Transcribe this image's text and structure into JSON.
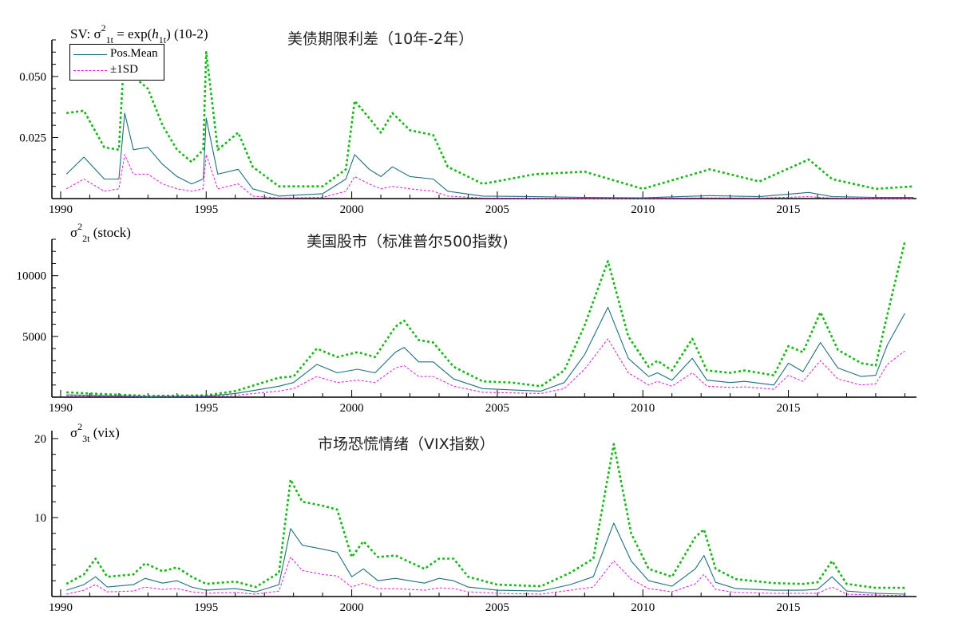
{
  "legend": {
    "mean": "Pos.Mean",
    "sd": "±1SD"
  },
  "colors": {
    "mean": "#1f6f7d",
    "upper": "#16b816",
    "lower": "#d81fd8",
    "axis": "#000000"
  },
  "chart_data": [
    {
      "type": "line",
      "title": "美债期限利差（10年-2年）",
      "ylabel_parts": [
        {
          "t": "SV: σ",
          "s": ""
        },
        {
          "t": "2",
          "s": "sup"
        },
        {
          "t": "1t",
          "s": "sub"
        },
        {
          "t": " = exp(",
          "s": ""
        },
        {
          "t": "h",
          "s": "i"
        },
        {
          "t": "1t",
          "s": "sub"
        },
        {
          "t": ") (10-2)",
          "s": ""
        }
      ],
      "xlim": [
        1989.7,
        2019.4
      ],
      "ylim": [
        0,
        0.065
      ],
      "xticks": [
        "1990",
        "1995",
        "2000",
        "2005",
        "2010",
        "2015"
      ],
      "yticks": [
        0.025,
        0.05
      ],
      "ytick_labels": [
        "0.025",
        "0.050"
      ],
      "yminor": 0.005,
      "x": [
        1990.2,
        1990.8,
        1991.5,
        1992.0,
        1992.2,
        1992.5,
        1993.0,
        1993.5,
        1994.0,
        1994.5,
        1994.9,
        1995.0,
        1995.4,
        1996.1,
        1996.6,
        1997.5,
        1999.0,
        1999.8,
        2000.1,
        2000.6,
        2001.0,
        2001.4,
        2002.0,
        2002.8,
        2003.3,
        2004.5,
        2006.3,
        2008.0,
        2010.0,
        2012.3,
        2014.0,
        2015.7,
        2016.5,
        2018.0,
        2019.3
      ],
      "series": [
        {
          "name": "Pos.Mean",
          "values": [
            0.01,
            0.017,
            0.008,
            0.008,
            0.035,
            0.02,
            0.021,
            0.014,
            0.009,
            0.006,
            0.008,
            0.033,
            0.01,
            0.012,
            0.004,
            0.001,
            0.002,
            0.008,
            0.018,
            0.012,
            0.009,
            0.013,
            0.009,
            0.008,
            0.003,
            0.001,
            0.0008,
            0.0005,
            0.0003,
            0.0012,
            0.0008,
            0.0025,
            0.0008,
            0.0005,
            0.0005
          ]
        },
        {
          "name": "+1SD",
          "values": [
            0.035,
            0.036,
            0.021,
            0.02,
            0.063,
            0.05,
            0.045,
            0.03,
            0.02,
            0.015,
            0.02,
            0.06,
            0.02,
            0.027,
            0.013,
            0.005,
            0.005,
            0.012,
            0.04,
            0.033,
            0.027,
            0.035,
            0.028,
            0.026,
            0.013,
            0.006,
            0.01,
            0.011,
            0.004,
            0.012,
            0.007,
            0.016,
            0.008,
            0.004,
            0.005
          ]
        },
        {
          "name": "-1SD",
          "values": [
            0.004,
            0.008,
            0.003,
            0.004,
            0.018,
            0.01,
            0.01,
            0.006,
            0.004,
            0.003,
            0.004,
            0.018,
            0.004,
            0.006,
            0.001,
            0.0002,
            0.0005,
            0.003,
            0.009,
            0.006,
            0.004,
            0.005,
            0.004,
            0.003,
            0.001,
            0.0002,
            0.0001,
            0.0001,
            0.0001,
            0.0003,
            0.0002,
            0.0008,
            0.0002,
            0.0001,
            0.0001
          ]
        }
      ]
    },
    {
      "type": "line",
      "title": "美国股市（标准普尔500指数)",
      "ylabel_parts": [
        {
          "t": "σ",
          "s": ""
        },
        {
          "t": "2",
          "s": "sup"
        },
        {
          "t": "2t",
          "s": "sub"
        },
        {
          "t": " (stock)",
          "s": ""
        }
      ],
      "xlim": [
        1989.7,
        2019.4
      ],
      "ylim": [
        0,
        13000
      ],
      "xticks": [
        "1990",
        "1995",
        "2000",
        "2005",
        "2010",
        "2015"
      ],
      "yticks": [
        5000,
        10000
      ],
      "ytick_labels": [
        "5000",
        "10000"
      ],
      "yminor": 1000,
      "x": [
        1990.2,
        1991,
        1993,
        1995,
        1996,
        1997.5,
        1998,
        1998.8,
        1999.5,
        2000.2,
        2000.8,
        2001.5,
        2001.8,
        2002.3,
        2002.8,
        2003.5,
        2004.5,
        2005.5,
        2006.5,
        2007.3,
        2008,
        2008.8,
        2009.5,
        2010.2,
        2010.5,
        2011,
        2011.7,
        2012.2,
        2013,
        2013.5,
        2014.5,
        2015.0,
        2015.5,
        2016.1,
        2016.7,
        2017.5,
        2018.0,
        2018.4,
        2019.0
      ],
      "series": [
        {
          "name": "Pos.Mean",
          "values": [
            200,
            150,
            50,
            80,
            300,
            900,
            1200,
            2700,
            2000,
            2300,
            2000,
            3700,
            4100,
            2900,
            2900,
            1500,
            700,
            600,
            500,
            1200,
            3500,
            7400,
            3200,
            1700,
            2000,
            1400,
            3200,
            1400,
            1200,
            1300,
            1000,
            2800,
            2100,
            4500,
            2400,
            1700,
            1800,
            4300,
            6900
          ]
        },
        {
          "name": "+1SD",
          "values": [
            400,
            300,
            100,
            150,
            500,
            1600,
            1700,
            4000,
            3300,
            3700,
            3300,
            5800,
            6300,
            4700,
            4500,
            2500,
            1300,
            1200,
            900,
            2200,
            5900,
            11200,
            5000,
            2500,
            3000,
            2200,
            4800,
            2200,
            2000,
            2200,
            1800,
            4200,
            3700,
            7000,
            3900,
            2800,
            2600,
            6800,
            12800
          ]
        },
        {
          "name": "-1SD",
          "values": [
            100,
            70,
            20,
            40,
            150,
            500,
            700,
            1700,
            1200,
            1400,
            1200,
            2400,
            2600,
            1700,
            1700,
            900,
            400,
            350,
            300,
            700,
            2300,
            4800,
            2000,
            1000,
            1300,
            900,
            2000,
            900,
            800,
            850,
            650,
            1800,
            1300,
            3000,
            1500,
            1000,
            1100,
            2700,
            3800
          ]
        }
      ]
    },
    {
      "type": "line",
      "title": "市场恐慌情绪（VIX指数）",
      "ylabel_parts": [
        {
          "t": "σ",
          "s": ""
        },
        {
          "t": "2",
          "s": "sup"
        },
        {
          "t": "3t",
          "s": "sub"
        },
        {
          "t": " (vix)",
          "s": ""
        }
      ],
      "xlim": [
        1989.7,
        2019.4
      ],
      "ylim": [
        0,
        21
      ],
      "xticks": [
        "1990",
        "1995",
        "2000",
        "2005",
        "2010",
        "2015"
      ],
      "yticks": [
        10,
        20
      ],
      "ytick_labels": [
        "10",
        "20"
      ],
      "yminor": 2,
      "x": [
        1990.2,
        1990.8,
        1991.2,
        1991.6,
        1992.5,
        1992.9,
        1993.5,
        1994.0,
        1994.5,
        1995.0,
        1996.0,
        1996.7,
        1997.5,
        1997.9,
        1998.3,
        1999.0,
        1999.5,
        2000.0,
        2000.4,
        2000.9,
        2001.5,
        2002.5,
        2003.0,
        2003.5,
        2004.0,
        2005.0,
        2006.5,
        2007.5,
        2008.3,
        2009.0,
        2009.6,
        2010.2,
        2011.0,
        2011.8,
        2012.1,
        2012.5,
        2013.2,
        2014.5,
        2015.5,
        2016.0,
        2016.5,
        2017.0,
        2018.0,
        2019.0
      ],
      "series": [
        {
          "name": "Pos.Mean",
          "values": [
            0.8,
            1.5,
            2.5,
            1.2,
            1.5,
            2.3,
            1.7,
            2.0,
            1.2,
            0.8,
            1.0,
            0.6,
            1.5,
            8.6,
            6.5,
            6.0,
            5.6,
            2.5,
            3.5,
            2.0,
            2.3,
            1.7,
            2.3,
            2.0,
            1.2,
            0.8,
            0.7,
            1.5,
            2.5,
            9.3,
            4.5,
            2.0,
            1.3,
            3.5,
            5.2,
            1.8,
            1.0,
            0.8,
            0.8,
            0.9,
            2.5,
            0.7,
            0.4,
            0.3
          ]
        },
        {
          "name": "+1SD",
          "values": [
            1.6,
            2.8,
            4.8,
            2.5,
            2.8,
            4.2,
            3.2,
            3.7,
            2.5,
            1.6,
            1.9,
            1.2,
            3.0,
            14.8,
            12.0,
            11.5,
            11.0,
            5.0,
            7.0,
            5.0,
            5.2,
            3.5,
            4.8,
            4.8,
            2.5,
            1.5,
            1.3,
            3.0,
            4.8,
            19.3,
            8.0,
            3.5,
            2.5,
            7.5,
            8.5,
            3.5,
            2.2,
            1.7,
            1.6,
            1.8,
            4.5,
            1.6,
            1.1,
            1.1
          ]
        },
        {
          "name": "-1SD",
          "values": [
            0.3,
            0.8,
            1.5,
            0.6,
            0.7,
            1.2,
            0.9,
            1.0,
            0.6,
            0.4,
            0.5,
            0.3,
            0.7,
            5.0,
            3.3,
            2.8,
            2.6,
            1.2,
            1.7,
            1.0,
            1.0,
            0.8,
            1.1,
            1.0,
            0.6,
            0.4,
            0.3,
            0.8,
            1.2,
            4.5,
            2.2,
            1.0,
            0.6,
            1.6,
            2.8,
            0.9,
            0.5,
            0.4,
            0.4,
            0.4,
            1.2,
            0.3,
            0.2,
            0.1
          ]
        }
      ]
    }
  ]
}
